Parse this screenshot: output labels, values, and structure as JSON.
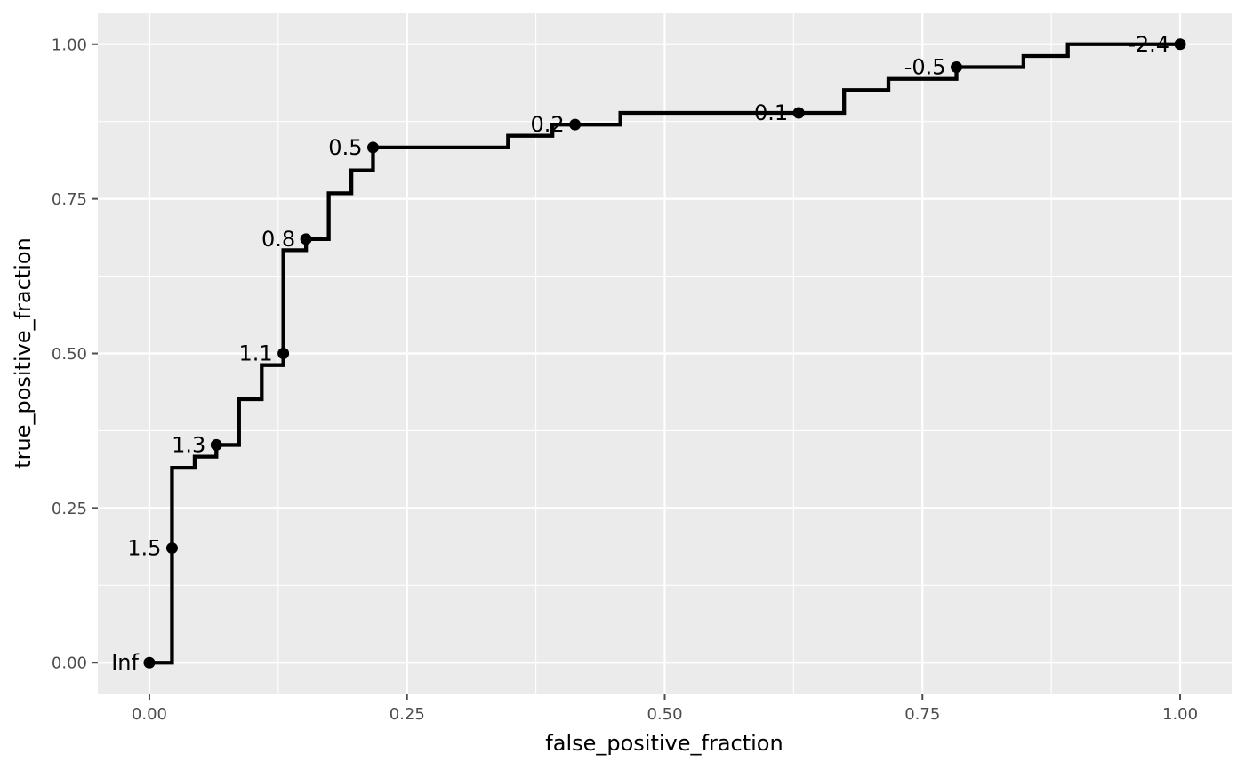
{
  "chart_data": {
    "type": "line",
    "title": "",
    "xlabel": "false_positive_fraction",
    "ylabel": "true_positive_fraction",
    "xlim": [
      -0.05,
      1.05
    ],
    "ylim": [
      -0.05,
      1.05
    ],
    "x_ticks": [
      0,
      0.25,
      0.5,
      0.75,
      1
    ],
    "x_tick_labels": [
      "0.00",
      "0.25",
      "0.50",
      "0.75",
      "1.00"
    ],
    "y_ticks": [
      0,
      0.25,
      0.5,
      0.75,
      1
    ],
    "y_tick_labels": [
      "0.00",
      "0.25",
      "0.50",
      "0.75",
      "1.00"
    ],
    "grid": true,
    "legend": "none",
    "colors": {
      "panel": "#ebebeb",
      "grid": "#ffffff",
      "line": "#000000",
      "ticks": "#4d4d4d"
    },
    "series": [
      {
        "style": "step",
        "points": [
          [
            0.0,
            0.0
          ],
          [
            0.022,
            0.0
          ],
          [
            0.022,
            0.185
          ],
          [
            0.022,
            0.315
          ],
          [
            0.044,
            0.315
          ],
          [
            0.044,
            0.333
          ],
          [
            0.065,
            0.333
          ],
          [
            0.065,
            0.352
          ],
          [
            0.087,
            0.352
          ],
          [
            0.087,
            0.426
          ],
          [
            0.109,
            0.426
          ],
          [
            0.109,
            0.481
          ],
          [
            0.13,
            0.481
          ],
          [
            0.13,
            0.5
          ],
          [
            0.13,
            0.667
          ],
          [
            0.152,
            0.667
          ],
          [
            0.152,
            0.685
          ],
          [
            0.174,
            0.685
          ],
          [
            0.174,
            0.759
          ],
          [
            0.196,
            0.759
          ],
          [
            0.196,
            0.796
          ],
          [
            0.217,
            0.796
          ],
          [
            0.217,
            0.833
          ],
          [
            0.348,
            0.833
          ],
          [
            0.348,
            0.852
          ],
          [
            0.391,
            0.852
          ],
          [
            0.391,
            0.87
          ],
          [
            0.457,
            0.87
          ],
          [
            0.457,
            0.889
          ],
          [
            0.674,
            0.889
          ],
          [
            0.674,
            0.926
          ],
          [
            0.717,
            0.926
          ],
          [
            0.717,
            0.944
          ],
          [
            0.783,
            0.944
          ],
          [
            0.783,
            0.963
          ],
          [
            0.848,
            0.963
          ],
          [
            0.848,
            0.981
          ],
          [
            0.891,
            0.981
          ],
          [
            0.891,
            1.0
          ],
          [
            1.0,
            1.0
          ]
        ]
      }
    ],
    "labeled_points": [
      {
        "x": 0.0,
        "y": 0.0,
        "label": "Inf"
      },
      {
        "x": 0.022,
        "y": 0.185,
        "label": "1.5"
      },
      {
        "x": 0.065,
        "y": 0.352,
        "label": "1.3"
      },
      {
        "x": 0.13,
        "y": 0.5,
        "label": "1.1"
      },
      {
        "x": 0.152,
        "y": 0.685,
        "label": "0.8"
      },
      {
        "x": 0.217,
        "y": 0.833,
        "label": "0.5"
      },
      {
        "x": 0.413,
        "y": 0.87,
        "label": "0.2"
      },
      {
        "x": 0.63,
        "y": 0.889,
        "label": "0.1"
      },
      {
        "x": 0.783,
        "y": 0.963,
        "label": "-0.5"
      },
      {
        "x": 1.0,
        "y": 1.0,
        "label": "-2.4"
      }
    ]
  }
}
